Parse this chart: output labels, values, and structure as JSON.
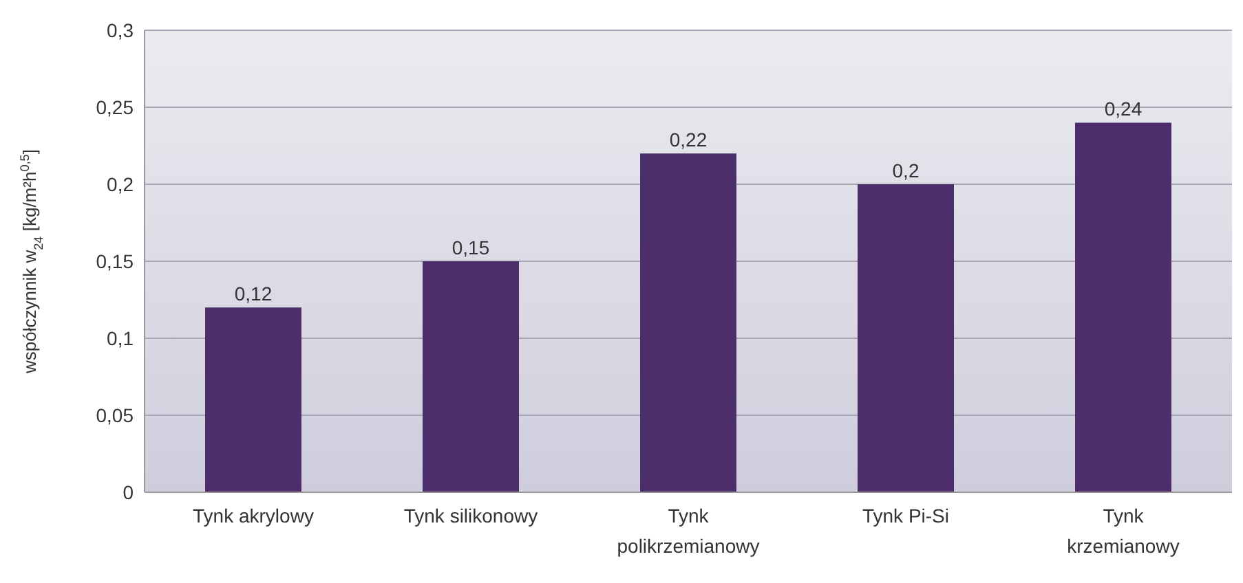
{
  "chart_data": {
    "type": "bar",
    "ylabel": "współczynnik w$_{24}$ [kg/m²h$^{0,5}$]",
    "categories": [
      "Tynk akrylowy",
      "Tynk silikonowy",
      "Tynk polikrzemianowy",
      "Tynk Pi-Si",
      "Tynk krzemianowy"
    ],
    "values": [
      0.12,
      0.15,
      0.22,
      0.2,
      0.24
    ],
    "value_labels": [
      "0,12",
      "0,15",
      "0,22",
      "0,2",
      "0,24"
    ],
    "color": "#4b2e6b",
    "ylim": [
      0,
      0.3
    ],
    "yticks": [
      {
        "value": 0,
        "label": "0"
      },
      {
        "value": 0.05,
        "label": "0,05"
      },
      {
        "value": 0.1,
        "label": "0,1"
      },
      {
        "value": 0.15,
        "label": "0,15"
      },
      {
        "value": 0.2,
        "label": "0,2"
      },
      {
        "value": 0.25,
        "label": "0,25"
      },
      {
        "value": 0.3,
        "label": "0,3"
      }
    ],
    "grid": "y"
  }
}
